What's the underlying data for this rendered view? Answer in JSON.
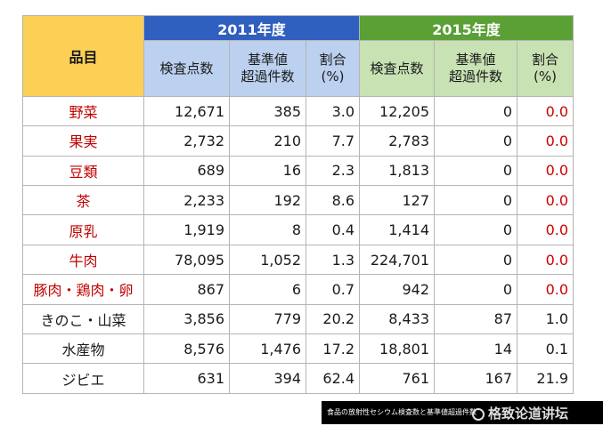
{
  "header": {
    "item_col": "品目",
    "year1": "2011年度",
    "year2": "2015年度",
    "col_tested": "検査点数",
    "col_exceed_l1": "基準値",
    "col_exceed_l2": "超過件数",
    "col_rate_l1": "割合",
    "col_rate_l2": "(%)"
  },
  "rows": [
    {
      "name": "野菜",
      "t1": "12,671",
      "e1": "385",
      "r1": "3.0",
      "t2": "12,205",
      "e2": "0",
      "r2": "0.0"
    },
    {
      "name": "果実",
      "t1": "2,732",
      "e1": "210",
      "r1": "7.7",
      "t2": "2,783",
      "e2": "0",
      "r2": "0.0"
    },
    {
      "name": "豆類",
      "t1": "689",
      "e1": "16",
      "r1": "2.3",
      "t2": "1,813",
      "e2": "0",
      "r2": "0.0"
    },
    {
      "name": "茶",
      "t1": "2,233",
      "e1": "192",
      "r1": "8.6",
      "t2": "127",
      "e2": "0",
      "r2": "0.0"
    },
    {
      "name": "原乳",
      "t1": "1,919",
      "e1": "8",
      "r1": "0.4",
      "t2": "1,414",
      "e2": "0",
      "r2": "0.0"
    },
    {
      "name": "牛肉",
      "t1": "78,095",
      "e1": "1,052",
      "r1": "1.3",
      "t2": "224,701",
      "e2": "0",
      "r2": "0.0"
    },
    {
      "name": "豚肉・鶏肉・卵",
      "t1": "867",
      "e1": "6",
      "r1": "0.7",
      "t2": "942",
      "e2": "0",
      "r2": "0.0"
    },
    {
      "name": "きのこ・山菜",
      "t1": "3,856",
      "e1": "779",
      "r1": "20.2",
      "t2": "8,433",
      "e2": "87",
      "r2": "1.0"
    },
    {
      "name": "水産物",
      "t1": "8,576",
      "e1": "1,476",
      "r1": "17.2",
      "t2": "18,801",
      "e2": "14",
      "r2": "0.1"
    },
    {
      "name": "ジビエ",
      "t1": "631",
      "e1": "394",
      "r1": "62.4",
      "t2": "761",
      "e2": "167",
      "r2": "21.9"
    }
  ],
  "colors": {
    "year1_bg": "#2f5fbf",
    "year2_bg": "#5aa035",
    "item_header_bg": "#fcd055",
    "highlight_text": "#c00000"
  },
  "caption": "食品の放射性セシウム検査数と基準値超過件数",
  "watermark": "格致论道讲坛"
}
